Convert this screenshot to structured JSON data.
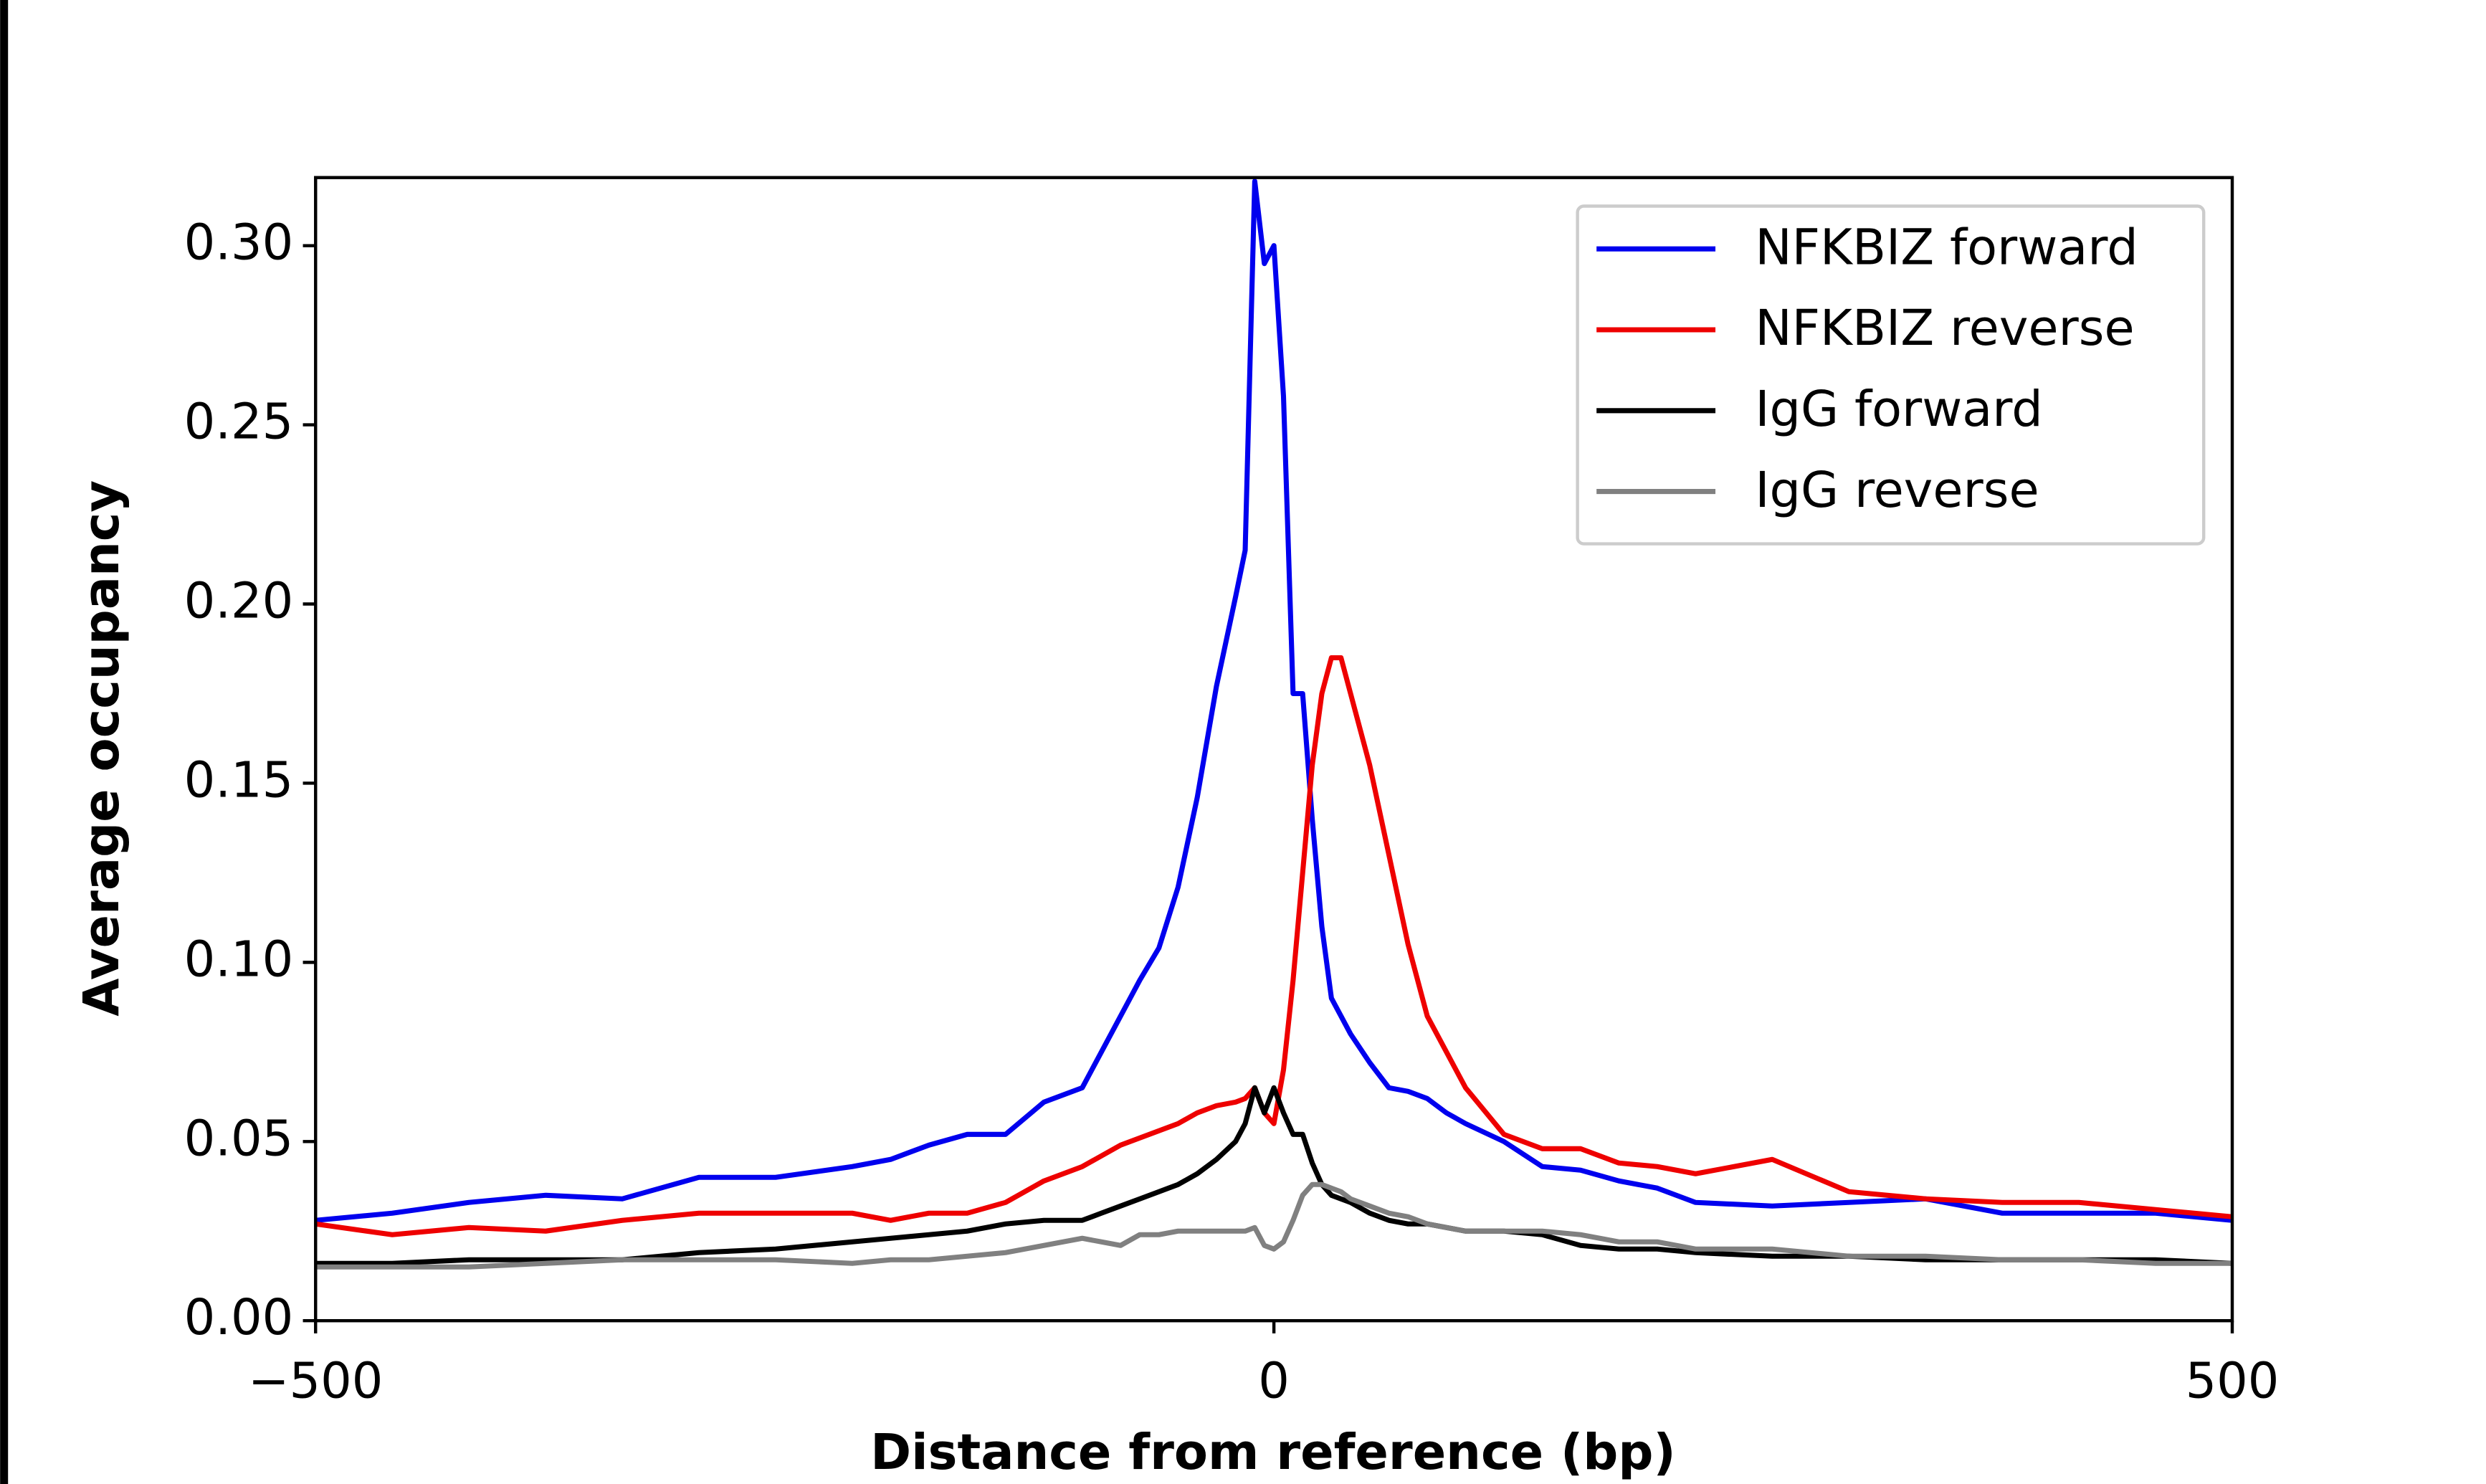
{
  "chart_data": {
    "type": "line",
    "xlabel": "Distance from reference (bp)",
    "ylabel": "Average occupancy",
    "x": [
      -500,
      -460,
      -420,
      -380,
      -340,
      -300,
      -260,
      -220,
      -200,
      -180,
      -160,
      -140,
      -120,
      -100,
      -90,
      -80,
      -70,
      -60,
      -50,
      -40,
      -30,
      -20,
      -15,
      -10,
      -5,
      0,
      5,
      10,
      15,
      20,
      25,
      30,
      35,
      40,
      50,
      60,
      70,
      80,
      90,
      100,
      120,
      140,
      160,
      180,
      200,
      220,
      260,
      300,
      340,
      380,
      420,
      460,
      500
    ],
    "series": [
      {
        "name": "NFKBIZ forward",
        "color": "#0000ee",
        "values": [
          0.028,
          0.03,
          0.033,
          0.035,
          0.034,
          0.04,
          0.04,
          0.043,
          0.045,
          0.049,
          0.052,
          0.052,
          0.061,
          0.065,
          0.075,
          0.085,
          0.095,
          0.104,
          0.121,
          0.146,
          0.177,
          0.202,
          0.215,
          0.318,
          0.295,
          0.3,
          0.258,
          0.175,
          0.175,
          0.14,
          0.11,
          0.09,
          0.085,
          0.08,
          0.072,
          0.065,
          0.064,
          0.062,
          0.058,
          0.055,
          0.05,
          0.043,
          0.042,
          0.039,
          0.037,
          0.033,
          0.032,
          0.033,
          0.034,
          0.03,
          0.03,
          0.03,
          0.028
        ]
      },
      {
        "name": "NFKBIZ reverse",
        "color": "#ee0000",
        "values": [
          0.027,
          0.024,
          0.026,
          0.025,
          0.028,
          0.03,
          0.03,
          0.03,
          0.028,
          0.03,
          0.03,
          0.033,
          0.039,
          0.043,
          0.046,
          0.049,
          0.051,
          0.053,
          0.055,
          0.058,
          0.06,
          0.061,
          0.062,
          0.065,
          0.058,
          0.055,
          0.07,
          0.095,
          0.125,
          0.155,
          0.175,
          0.185,
          0.185,
          0.175,
          0.155,
          0.13,
          0.105,
          0.085,
          0.075,
          0.065,
          0.052,
          0.048,
          0.048,
          0.044,
          0.043,
          0.041,
          0.045,
          0.036,
          0.034,
          0.033,
          0.033,
          0.031,
          0.029
        ]
      },
      {
        "name": "IgG forward",
        "color": "#000000",
        "values": [
          0.016,
          0.016,
          0.017,
          0.017,
          0.017,
          0.019,
          0.02,
          0.022,
          0.023,
          0.024,
          0.025,
          0.027,
          0.028,
          0.028,
          0.03,
          0.032,
          0.034,
          0.036,
          0.038,
          0.041,
          0.045,
          0.05,
          0.055,
          0.065,
          0.058,
          0.065,
          0.058,
          0.052,
          0.052,
          0.044,
          0.038,
          0.035,
          0.034,
          0.033,
          0.03,
          0.028,
          0.027,
          0.027,
          0.026,
          0.025,
          0.025,
          0.024,
          0.021,
          0.02,
          0.02,
          0.019,
          0.018,
          0.018,
          0.017,
          0.017,
          0.017,
          0.017,
          0.016
        ]
      },
      {
        "name": "IgG reverse",
        "color": "#808080",
        "values": [
          0.015,
          0.015,
          0.015,
          0.016,
          0.017,
          0.017,
          0.017,
          0.016,
          0.017,
          0.017,
          0.018,
          0.019,
          0.021,
          0.023,
          0.022,
          0.021,
          0.024,
          0.024,
          0.025,
          0.025,
          0.025,
          0.025,
          0.025,
          0.026,
          0.021,
          0.02,
          0.022,
          0.028,
          0.035,
          0.038,
          0.038,
          0.037,
          0.036,
          0.034,
          0.032,
          0.03,
          0.029,
          0.027,
          0.026,
          0.025,
          0.025,
          0.025,
          0.024,
          0.022,
          0.022,
          0.02,
          0.02,
          0.018,
          0.018,
          0.017,
          0.017,
          0.016,
          0.016
        ]
      }
    ],
    "xlim": [
      -500,
      500
    ],
    "ylim": [
      0,
      0.319
    ],
    "xticks": [
      {
        "value": -500,
        "label": "−500"
      },
      0,
      500
    ],
    "yticks": [
      {
        "value": 0,
        "label": "0.00"
      },
      {
        "value": 0.05,
        "label": "0.05"
      },
      {
        "value": 0.1,
        "label": "0.10"
      },
      {
        "value": 0.15,
        "label": "0.15"
      },
      {
        "value": 0.2,
        "label": "0.20"
      },
      {
        "value": 0.25,
        "label": "0.25"
      },
      {
        "value": 0.3,
        "label": "0.30"
      }
    ],
    "legend": "upper right",
    "grid": false
  }
}
